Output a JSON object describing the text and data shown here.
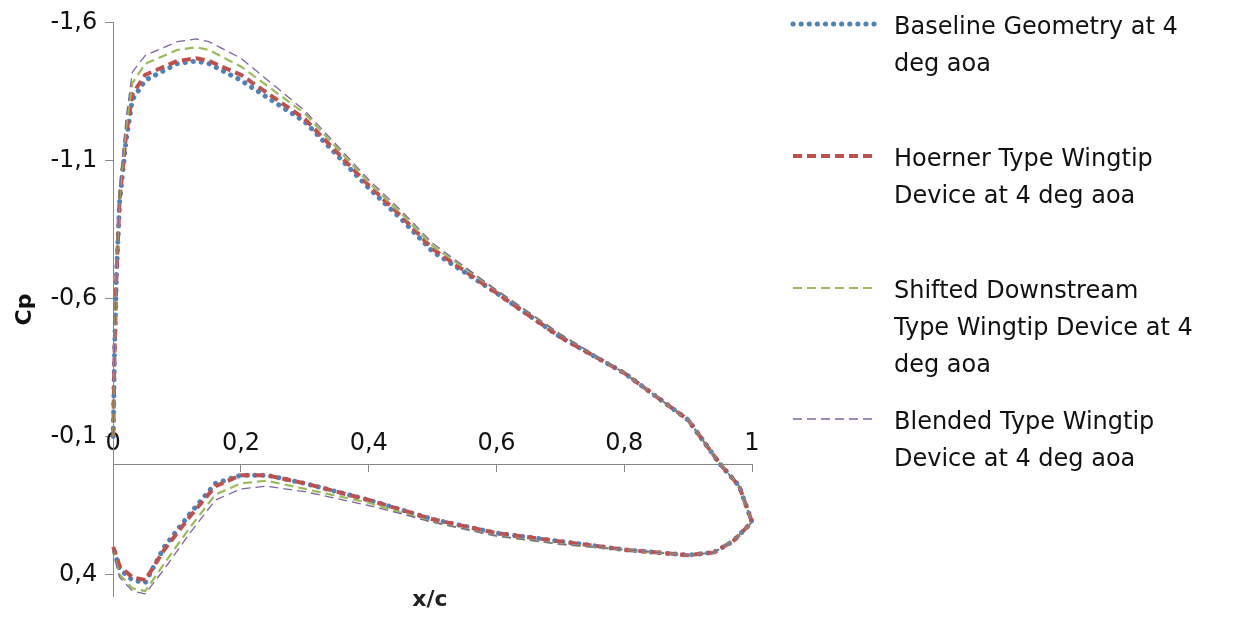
{
  "chart_data": {
    "type": "line",
    "xlabel": "x/c",
    "ylabel": "Cp",
    "xlim": [
      0,
      1
    ],
    "xticks": [
      0,
      {
        "value": 0.2,
        "label": "0,2"
      },
      {
        "value": 0.4,
        "label": "0,4"
      },
      {
        "value": 0.6,
        "label": "0,6"
      },
      {
        "value": 0.8,
        "label": "0,8"
      },
      1
    ],
    "ylim": [
      0.48,
      -1.6
    ],
    "yticks": [
      {
        "value": -1.6,
        "label": "-1,6"
      },
      {
        "value": -1.1,
        "label": "-1,1"
      },
      {
        "value": -0.6,
        "label": "-0,6"
      },
      {
        "value": -0.1,
        "label": "-0,1"
      },
      {
        "value": 0.4,
        "label": "0,4"
      }
    ],
    "grid": false,
    "legend": "right",
    "marker": "none",
    "series": [
      {
        "name": "Baseline Geometry at 4 deg aoa",
        "color": "#4f81bd",
        "line_style": "dotted",
        "x": [
          0,
          0.002,
          0.005,
          0.01,
          0.02,
          0.03,
          0.05,
          0.1,
          0.13,
          0.15,
          0.2,
          0.3,
          0.4,
          0.45,
          0.5,
          0.6,
          0.7,
          0.8,
          0.9,
          0.95,
          0.98,
          1,
          0.97,
          0.94,
          0.9,
          0.8,
          0.7,
          0.6,
          0.5,
          0.4,
          0.3,
          0.24,
          0.2,
          0.16,
          0.12,
          0.08,
          0.05,
          0.03,
          0.01,
          0
        ],
        "values": [
          -0.1,
          -0.4,
          -0.68,
          -0.95,
          -1.17,
          -1.32,
          -1.39,
          -1.45,
          -1.46,
          -1.45,
          -1.39,
          -1.24,
          -1.0,
          -0.89,
          -0.77,
          -0.62,
          -0.46,
          -0.33,
          -0.16,
          0,
          0.08,
          0.21,
          0.28,
          0.32,
          0.33,
          0.31,
          0.28,
          0.25,
          0.2,
          0.13,
          0.07,
          0.04,
          0.04,
          0.07,
          0.18,
          0.3,
          0.43,
          0.42,
          0.38,
          0.3
        ]
      },
      {
        "name": "Hoerner Type Wingtip Device at 4 deg aoa",
        "color": "#c0504d",
        "line_style": "dashed",
        "x": [
          0,
          0.002,
          0.005,
          0.01,
          0.02,
          0.03,
          0.05,
          0.1,
          0.13,
          0.15,
          0.2,
          0.3,
          0.4,
          0.45,
          0.5,
          0.6,
          0.7,
          0.8,
          0.9,
          0.95,
          0.98,
          1,
          0.97,
          0.94,
          0.9,
          0.8,
          0.7,
          0.6,
          0.5,
          0.4,
          0.3,
          0.24,
          0.2,
          0.16,
          0.12,
          0.08,
          0.05,
          0.03,
          0.01,
          0
        ],
        "values": [
          -0.1,
          -0.4,
          -0.68,
          -0.96,
          -1.19,
          -1.34,
          -1.41,
          -1.46,
          -1.47,
          -1.46,
          -1.41,
          -1.25,
          -1.01,
          -0.9,
          -0.78,
          -0.62,
          -0.46,
          -0.33,
          -0.16,
          0,
          0.08,
          0.21,
          0.28,
          0.32,
          0.33,
          0.31,
          0.28,
          0.25,
          0.2,
          0.13,
          0.07,
          0.04,
          0.04,
          0.08,
          0.19,
          0.31,
          0.42,
          0.41,
          0.37,
          0.3
        ]
      },
      {
        "name": "Shifted Downstream Type Wingtip Device at 4 deg aoa",
        "color": "#9bbb59",
        "line_style": "dashed",
        "x": [
          0,
          0.002,
          0.005,
          0.01,
          0.02,
          0.03,
          0.05,
          0.1,
          0.13,
          0.15,
          0.2,
          0.3,
          0.4,
          0.45,
          0.5,
          0.6,
          0.7,
          0.8,
          0.9,
          0.95,
          0.98,
          1,
          0.97,
          0.94,
          0.9,
          0.8,
          0.7,
          0.6,
          0.5,
          0.4,
          0.3,
          0.24,
          0.2,
          0.16,
          0.12,
          0.08,
          0.05,
          0.03,
          0.01,
          0
        ],
        "values": [
          -0.1,
          -0.4,
          -0.7,
          -0.98,
          -1.22,
          -1.38,
          -1.45,
          -1.5,
          -1.51,
          -1.5,
          -1.44,
          -1.27,
          -1.02,
          -0.91,
          -0.79,
          -0.63,
          -0.47,
          -0.33,
          -0.16,
          0,
          0.08,
          0.21,
          0.28,
          0.32,
          0.33,
          0.31,
          0.29,
          0.26,
          0.21,
          0.14,
          0.09,
          0.06,
          0.07,
          0.11,
          0.23,
          0.36,
          0.46,
          0.45,
          0.4,
          0.32
        ]
      },
      {
        "name": "Blended Type Wingtip Device at 4 deg aoa",
        "color": "#8064a2",
        "line_style": "dashed",
        "x": [
          0,
          0.002,
          0.005,
          0.01,
          0.02,
          0.03,
          0.05,
          0.1,
          0.13,
          0.15,
          0.2,
          0.3,
          0.4,
          0.45,
          0.5,
          0.6,
          0.7,
          0.8,
          0.9,
          0.95,
          0.98,
          1,
          0.97,
          0.94,
          0.9,
          0.8,
          0.7,
          0.6,
          0.5,
          0.4,
          0.3,
          0.24,
          0.2,
          0.16,
          0.12,
          0.08,
          0.05,
          0.03,
          0.01,
          0
        ],
        "values": [
          -0.1,
          -0.4,
          -0.7,
          -1.0,
          -1.25,
          -1.42,
          -1.48,
          -1.53,
          -1.54,
          -1.53,
          -1.47,
          -1.28,
          -1.03,
          -0.92,
          -0.8,
          -0.63,
          -0.47,
          -0.33,
          -0.16,
          0,
          0.08,
          0.21,
          0.28,
          0.32,
          0.33,
          0.31,
          0.29,
          0.26,
          0.21,
          0.15,
          0.1,
          0.08,
          0.09,
          0.13,
          0.25,
          0.38,
          0.47,
          0.46,
          0.41,
          0.32
        ]
      }
    ]
  }
}
